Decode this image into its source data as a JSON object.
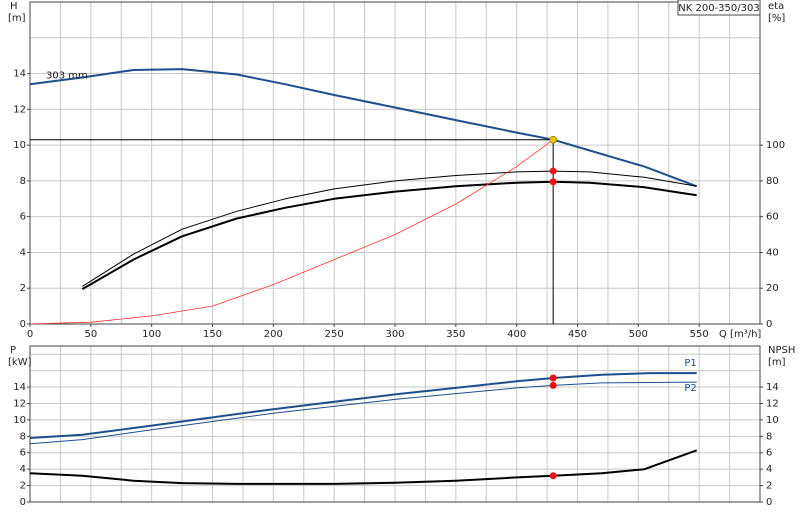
{
  "chart_data": [
    {
      "type": "line",
      "title": "NK 200-350/303",
      "ylabel": "H",
      "yunit": "[m]",
      "y2label": "eta",
      "y2unit": "[%]",
      "xlabel": "Q [m³/h]",
      "xlim": [
        0,
        600
      ],
      "xticks": [
        0,
        50,
        100,
        150,
        200,
        250,
        300,
        350,
        400,
        450,
        500,
        550
      ],
      "xgrid": [
        0,
        25,
        50,
        75,
        100,
        125,
        150,
        175,
        200,
        225,
        250,
        275,
        300,
        325,
        350,
        375,
        400,
        425,
        450,
        475,
        500,
        525,
        550,
        575,
        600
      ],
      "ylim": [
        0,
        18
      ],
      "yticks": [
        0,
        2,
        4,
        6,
        8,
        10,
        12,
        14
      ],
      "ygrid": [
        0,
        2,
        4,
        6,
        8,
        10,
        12,
        14,
        16,
        18
      ],
      "y2lim": [
        0,
        180
      ],
      "y2ticks": [
        0,
        20,
        40,
        60,
        80,
        100
      ],
      "grid": true,
      "series": [
        {
          "name": "303 mm",
          "color": "#1f4e8c",
          "line_width": 2,
          "axis": "y",
          "x": [
            0,
            45,
            85,
            125,
            170,
            210,
            250,
            300,
            350,
            400,
            430,
            460,
            505,
            548
          ],
          "values": [
            13.4,
            13.8,
            14.2,
            14.25,
            13.95,
            13.4,
            12.8,
            12.1,
            11.4,
            10.7,
            10.3,
            9.7,
            8.8,
            7.7
          ]
        },
        {
          "color": "#000000",
          "line_width": 1,
          "axis": "y2",
          "x": [
            43,
            85,
            125,
            170,
            210,
            250,
            300,
            350,
            400,
            430,
            460,
            505,
            548
          ],
          "values": [
            21,
            39,
            53,
            63,
            70,
            75.5,
            80,
            83,
            85,
            85.5,
            85,
            82,
            77
          ]
        },
        {
          "color": "#000000",
          "line_width": 2,
          "axis": "y2",
          "x": [
            43,
            85,
            125,
            170,
            210,
            250,
            300,
            350,
            400,
            430,
            460,
            505,
            548
          ],
          "values": [
            19.5,
            36,
            49,
            59,
            65,
            70,
            74,
            77,
            79,
            79.5,
            79,
            76.5,
            72
          ]
        },
        {
          "color": "#ff3333",
          "line_width": 0.8,
          "axis": "y",
          "x": [
            0,
            50,
            100,
            150,
            200,
            250,
            300,
            350,
            400,
            430
          ],
          "values": [
            0,
            0.1,
            0.45,
            1,
            2.2,
            3.6,
            5.0,
            6.7,
            8.8,
            10.3
          ]
        }
      ],
      "markers": [
        {
          "x": 430,
          "y": 10.3,
          "axis": "y",
          "color": "#f5c400",
          "lines": true
        },
        {
          "x": 430,
          "y": 85.5,
          "axis": "y2",
          "color": "#ee1111"
        },
        {
          "x": 430,
          "y": 79.5,
          "axis": "y2",
          "color": "#ee1111"
        }
      ]
    },
    {
      "type": "line",
      "ylabel": "P",
      "yunit": "[kW]",
      "y2label": "NPSH",
      "y2unit": "[m]",
      "xlim": [
        0,
        600
      ],
      "xgrid": [
        0,
        25,
        50,
        75,
        100,
        125,
        150,
        175,
        200,
        225,
        250,
        275,
        300,
        325,
        350,
        375,
        400,
        425,
        450,
        475,
        500,
        525,
        550,
        575,
        600
      ],
      "ylim": [
        0,
        19
      ],
      "yticks": [
        0,
        2,
        4,
        6,
        8,
        10,
        12,
        14
      ],
      "ygrid": [
        0,
        2,
        4,
        6,
        8,
        10,
        12,
        14,
        16,
        18
      ],
      "y2lim": [
        0,
        19
      ],
      "y2ticks": [
        0,
        2,
        4,
        6,
        8,
        10,
        12,
        14
      ],
      "grid": true,
      "series": [
        {
          "name": "P1",
          "color": "#1f4e8c",
          "line_width": 2,
          "axis": "y",
          "x": [
            0,
            43,
            100,
            150,
            200,
            250,
            300,
            350,
            400,
            430,
            470,
            510,
            548
          ],
          "values": [
            7.8,
            8.2,
            9.3,
            10.3,
            11.3,
            12.2,
            13.1,
            13.9,
            14.7,
            15.1,
            15.5,
            15.7,
            15.7
          ]
        },
        {
          "name": "P2",
          "color": "#1f4e8c",
          "line_width": 1,
          "axis": "y",
          "x": [
            0,
            43,
            100,
            200,
            300,
            400,
            430,
            470,
            548
          ],
          "values": [
            7.1,
            7.6,
            8.8,
            10.8,
            12.5,
            13.9,
            14.2,
            14.5,
            14.6
          ]
        },
        {
          "color": "#000000",
          "line_width": 2,
          "axis": "y2",
          "x": [
            0,
            43,
            85,
            125,
            170,
            250,
            300,
            350,
            400,
            430,
            470,
            505,
            548
          ],
          "values": [
            3.5,
            3.2,
            2.6,
            2.3,
            2.2,
            2.2,
            2.35,
            2.6,
            3.0,
            3.2,
            3.5,
            4.0,
            6.3
          ]
        }
      ],
      "markers": [
        {
          "x": 430,
          "y": 15.1,
          "axis": "y",
          "color": "#ee1111"
        },
        {
          "x": 430,
          "y": 14.2,
          "axis": "y",
          "color": "#ee1111"
        },
        {
          "x": 430,
          "y": 3.2,
          "axis": "y2",
          "color": "#ee1111"
        }
      ]
    }
  ]
}
